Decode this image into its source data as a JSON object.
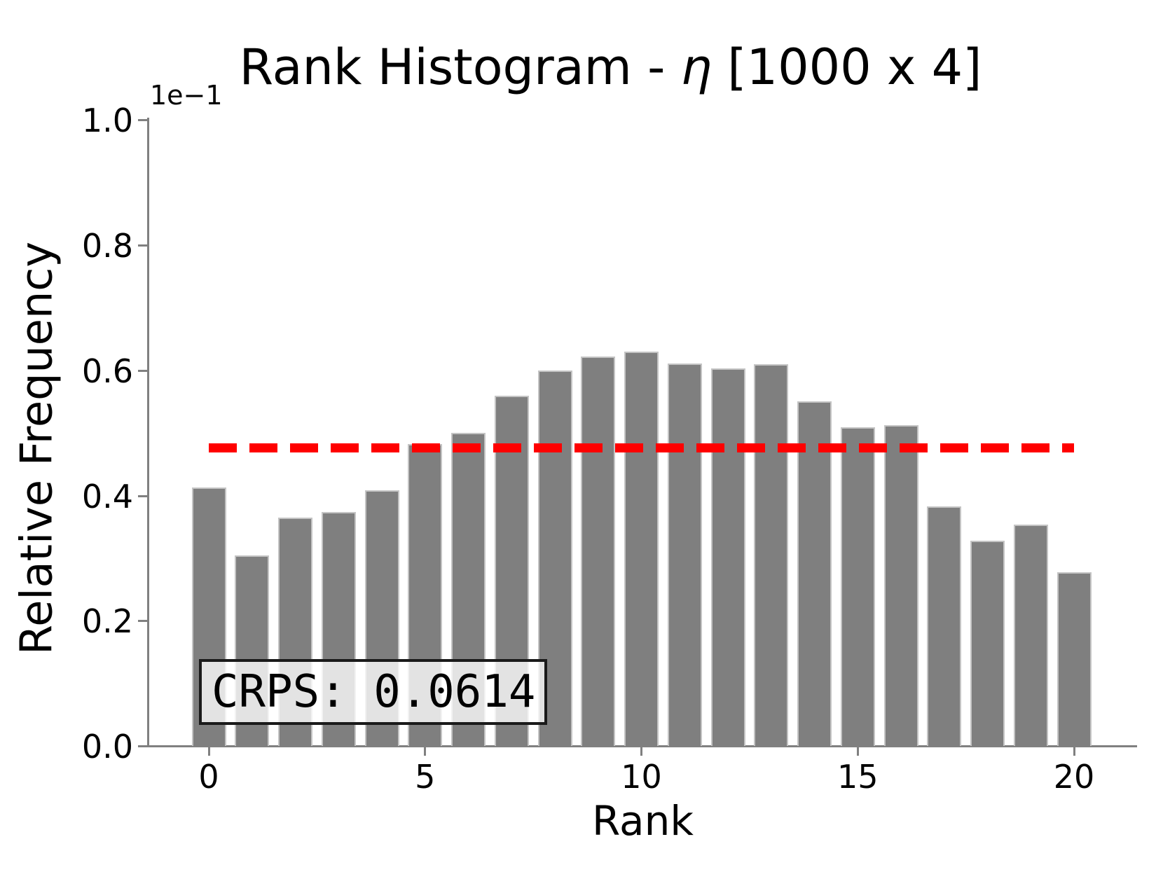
{
  "figure": {
    "title": {
      "prefix": "Rank Histogram - ",
      "variable": "η",
      "suffix": " [1000 x 4]",
      "full": "Rank Histogram - η [1000 x 4]"
    },
    "y_axis": {
      "label": "Relative Frequency",
      "offset_text": "1e−1",
      "tick_labels": [
        "0.0",
        "0.2",
        "0.4",
        "0.6",
        "0.8",
        "1.0"
      ]
    },
    "x_axis": {
      "label": "Rank",
      "tick_labels": [
        "0",
        "5",
        "10",
        "15",
        "20"
      ]
    },
    "annotation": {
      "text": "CRPS: 0.0614"
    }
  },
  "chart_data": {
    "type": "bar",
    "title": "Rank Histogram - η [1000 x 4]",
    "xlabel": "Rank",
    "ylabel": "Relative Frequency",
    "x": [
      0,
      1,
      2,
      3,
      4,
      5,
      6,
      7,
      8,
      9,
      10,
      11,
      12,
      13,
      14,
      15,
      16,
      17,
      18,
      19,
      20
    ],
    "values": [
      0.0413,
      0.0304,
      0.0365,
      0.0374,
      0.0408,
      0.0482,
      0.05,
      0.0559,
      0.06,
      0.0622,
      0.063,
      0.0611,
      0.0603,
      0.061,
      0.055,
      0.0509,
      0.0512,
      0.0383,
      0.0328,
      0.0353,
      0.0277
    ],
    "bar_color": "#7f7f7f",
    "bar_edge_color": "#c4c4c4",
    "reference_line": {
      "y": 0.0476,
      "style": "dashed",
      "color": "#ff0000",
      "meaning": "uniform frequency 1/21"
    },
    "annotation": "CRPS: 0.0614",
    "xlim": [
      -1.45,
      21.45
    ],
    "ylim": [
      0.0,
      0.1
    ],
    "x_ticks": [
      0,
      5,
      10,
      15,
      20
    ],
    "y_ticks": [
      0.0,
      0.02,
      0.04,
      0.06,
      0.08,
      0.1
    ],
    "y_offset_factor": "1e-1",
    "grid": false,
    "legend": "none"
  },
  "colors": {
    "bar": "#7f7f7f",
    "bar_edge": "#c4c4c4",
    "reference_line": "#ff0000",
    "spine": "#808080",
    "text": "#000000",
    "annotation_bg": "rgba(255,255,255,0.78)",
    "annotation_border": "#1a1a1a",
    "background": "#ffffff"
  }
}
